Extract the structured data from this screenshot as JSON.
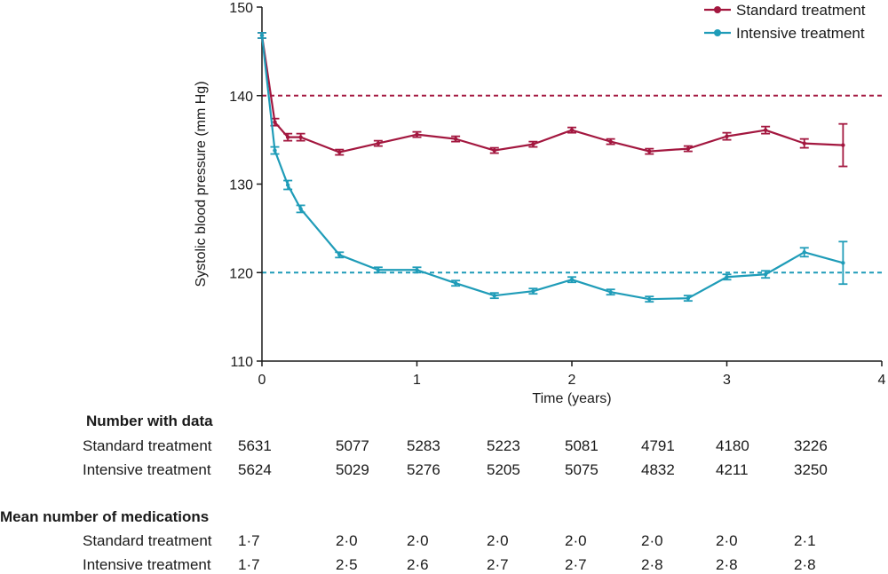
{
  "chart_data": {
    "type": "line",
    "xlabel": "Time (years)",
    "ylabel": "Systolic  blood pressure (mm Hg)",
    "xlim": [
      0,
      4
    ],
    "ylim": [
      110,
      150
    ],
    "xticks": [
      "0",
      "1",
      "2",
      "3",
      "4"
    ],
    "yticks": [
      "110",
      "120",
      "130",
      "140",
      "150"
    ],
    "legend_position": "top-right",
    "reference_lines": [
      {
        "name": "Standard target",
        "y": 140,
        "color": "#a3173f"
      },
      {
        "name": "Intensive target",
        "y": 120,
        "color": "#1f9cb8"
      }
    ],
    "series": [
      {
        "name": "Standard treatment",
        "color": "#a3173f",
        "x": [
          0,
          0.083,
          0.167,
          0.25,
          0.5,
          0.75,
          1.0,
          1.25,
          1.5,
          1.75,
          2.0,
          2.25,
          2.5,
          2.75,
          3.0,
          3.25,
          3.5,
          3.75
        ],
        "y": [
          146.8,
          137.0,
          135.3,
          135.3,
          133.6,
          134.6,
          135.6,
          135.1,
          133.8,
          134.5,
          136.1,
          134.8,
          133.7,
          134.0,
          135.4,
          136.1,
          134.6,
          134.4
        ],
        "err": [
          0.3,
          0.4,
          0.4,
          0.4,
          0.3,
          0.3,
          0.3,
          0.3,
          0.3,
          0.3,
          0.3,
          0.3,
          0.3,
          0.3,
          0.4,
          0.4,
          0.5,
          2.4
        ]
      },
      {
        "name": "Intensive treatment",
        "color": "#1f9cb8",
        "x": [
          0,
          0.083,
          0.167,
          0.25,
          0.5,
          0.75,
          1.0,
          1.25,
          1.5,
          1.75,
          2.0,
          2.25,
          2.5,
          2.75,
          3.0,
          3.25,
          3.5,
          3.75
        ],
        "y": [
          146.8,
          133.8,
          129.9,
          127.2,
          122.0,
          120.3,
          120.3,
          118.8,
          117.4,
          117.9,
          119.2,
          117.8,
          117.0,
          117.1,
          119.5,
          119.8,
          122.3,
          121.1
        ],
        "err": [
          0.3,
          0.4,
          0.5,
          0.4,
          0.3,
          0.3,
          0.3,
          0.3,
          0.3,
          0.3,
          0.3,
          0.3,
          0.3,
          0.3,
          0.3,
          0.4,
          0.5,
          2.4
        ]
      }
    ]
  },
  "number_with_data": {
    "heading": "Number with data",
    "rows": [
      {
        "label": "Standard treatment",
        "values": [
          "5631",
          "5077",
          "5283",
          "5223",
          "5081",
          "4791",
          "4180",
          "3226"
        ]
      },
      {
        "label": "Intensive treatment",
        "values": [
          "5624",
          "5029",
          "5276",
          "5205",
          "5075",
          "4832",
          "4211",
          "3250"
        ]
      }
    ]
  },
  "mean_medications": {
    "heading": "Mean number of medications",
    "rows": [
      {
        "label": "Standard treatment",
        "values": [
          "1·7",
          "2·0",
          "2·0",
          "2·0",
          "2·0",
          "2·0",
          "2·0",
          "2·1"
        ]
      },
      {
        "label": "Intensive treatment",
        "values": [
          "1·7",
          "2·5",
          "2·6",
          "2·7",
          "2·7",
          "2·8",
          "2·8",
          "2·8"
        ]
      }
    ]
  }
}
